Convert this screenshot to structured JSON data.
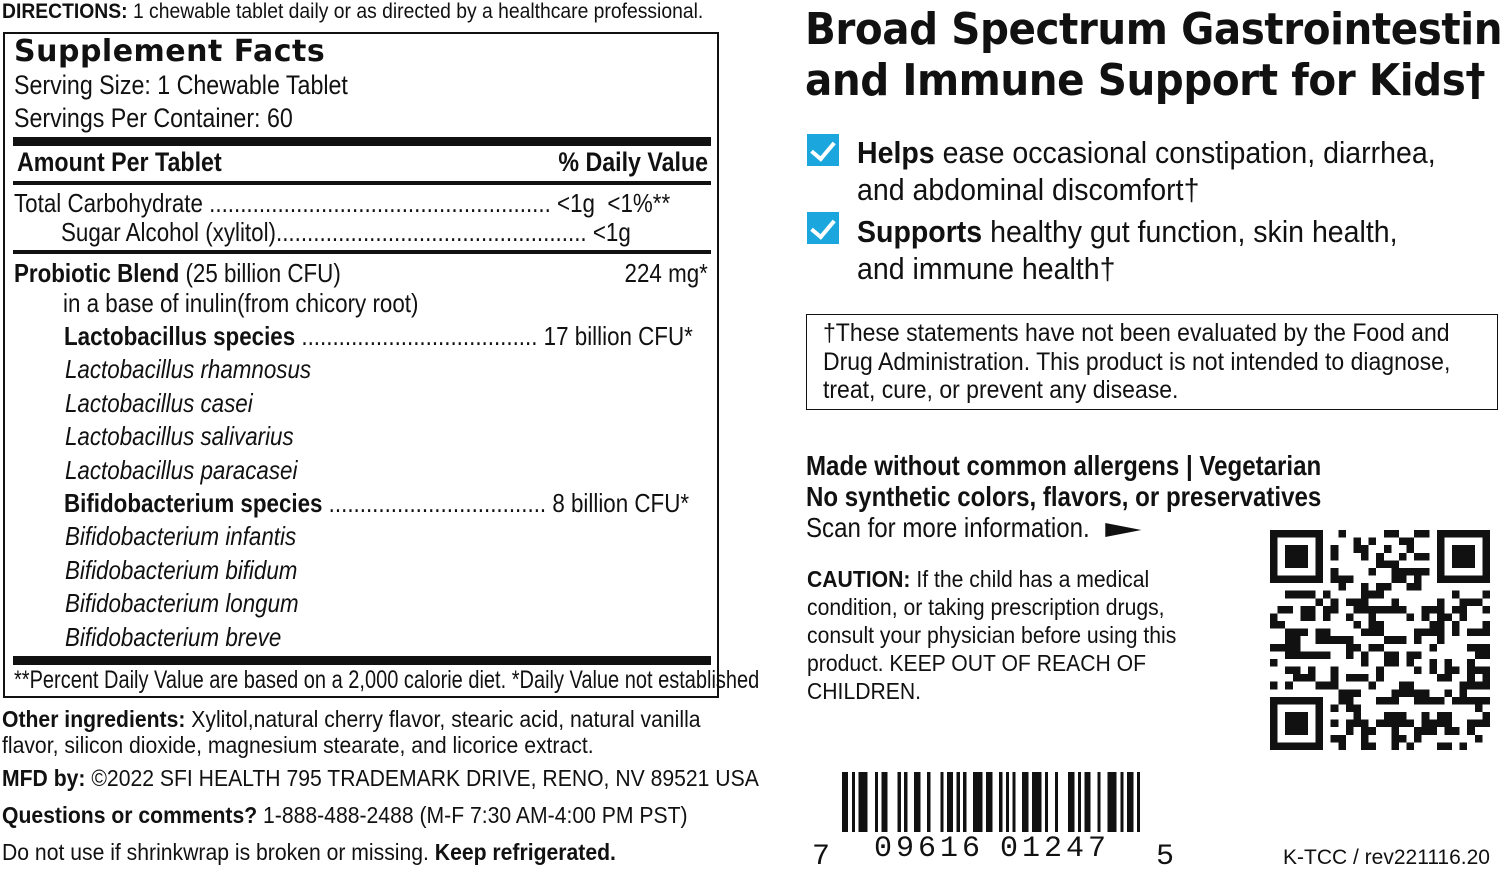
{
  "directions": {
    "label": "DIRECTIONS:",
    "text": " 1 chewable tablet daily or as directed by a healthcare professional."
  },
  "facts": {
    "title": "Supplement Facts",
    "serving_size": "Serving Size: 1 Chewable Tablet",
    "servings_per_container": "Servings Per Container: 60",
    "amount_header": "Amount Per Tablet",
    "dv_header": "% Daily Value",
    "carb": {
      "label": "Total Carbohydrate ",
      "dots": ".......................................................",
      "amount": "<1g",
      "dv": "<1%**"
    },
    "sugar_alcohol": {
      "label": "Sugar Alcohol (xylitol)",
      "dots": "..................................................",
      "amount": "<1g"
    },
    "probiotic": {
      "label": "Probiotic Blend",
      "cfu": " (25 billion CFU)",
      "amount": "224 mg*"
    },
    "base": "in a base of inulin(from chicory root)",
    "lacto": {
      "label": "Lactobacillus species",
      "dots": " ......................................",
      "amount": "17 billion CFU*"
    },
    "lacto_strains": [
      "Lactobacillus rhamnosus",
      "Lactobacillus casei",
      "Lactobacillus salivarius",
      "Lactobacillus paracasei"
    ],
    "bifido": {
      "label": "Bifidobacterium species",
      "dots": " ...................................",
      "amount": "8 billion CFU*"
    },
    "bifido_strains": [
      "Bifidobacterium infantis",
      "Bifidobacterium bifidum",
      "Bifidobacterium longum",
      "Bifidobacterium breve"
    ],
    "footnote": "**Percent Daily Value are based on a 2,000 calorie diet.  *Daily Value not established"
  },
  "other_ingredients": {
    "label": "Other ingredients:",
    "line1": " Xylitol,natural cherry flavor, stearic acid, natural vanilla",
    "line2": "flavor, silicon dioxide, magnesium stearate, and licorice extract."
  },
  "mfd": {
    "label": "MFD by:",
    "text": " ©2022 SFI HEALTH  795 TRADEMARK DRIVE, RENO, NV 89521 USA"
  },
  "questions": {
    "label": "Questions or comments?",
    "text": " 1-888-488-2488 (M-F 7:30 AM-4:00 PM PST)"
  },
  "shrinkwrap": {
    "text": "Do not use if shrinkwrap is broken or missing. ",
    "bold": "Keep refrigerated."
  },
  "headline": {
    "line1": "Broad Spectrum Gastrointestinal",
    "line2": "and Immune Support for Kids†"
  },
  "benefits": [
    {
      "bold": "Helps",
      "text": " ease occasional constipation, diarrhea,",
      "line2": "and abdominal discomfort†"
    },
    {
      "bold": "Supports",
      "text": " healthy gut function, skin health,",
      "line2": "and immune health†"
    }
  ],
  "disclaimer": {
    "line1": "†These statements have not been evaluated by the Food and",
    "line2": "Drug Administration. This product is not intended to diagnose,",
    "line3": "treat, cure, or prevent any disease."
  },
  "allergens": {
    "line1": "Made without common allergens | Vegetarian",
    "line2": "No synthetic colors, flavors, or preservatives",
    "scan": "Scan for more information."
  },
  "caution": {
    "label": "CAUTION:",
    "line1": " If the child has a medical",
    "line2": "condition, or taking prescription drugs,",
    "line3": "consult your physician before using this",
    "line4": "product. KEEP OUT OF REACH OF",
    "line5": "CHILDREN."
  },
  "barcode": {
    "first": "7",
    "left": "09616",
    "right": "01247",
    "last": "5"
  },
  "code_id": "K-TCC / rev221116.20",
  "colors": {
    "check": "#1ba7dd",
    "text": "#111111"
  }
}
